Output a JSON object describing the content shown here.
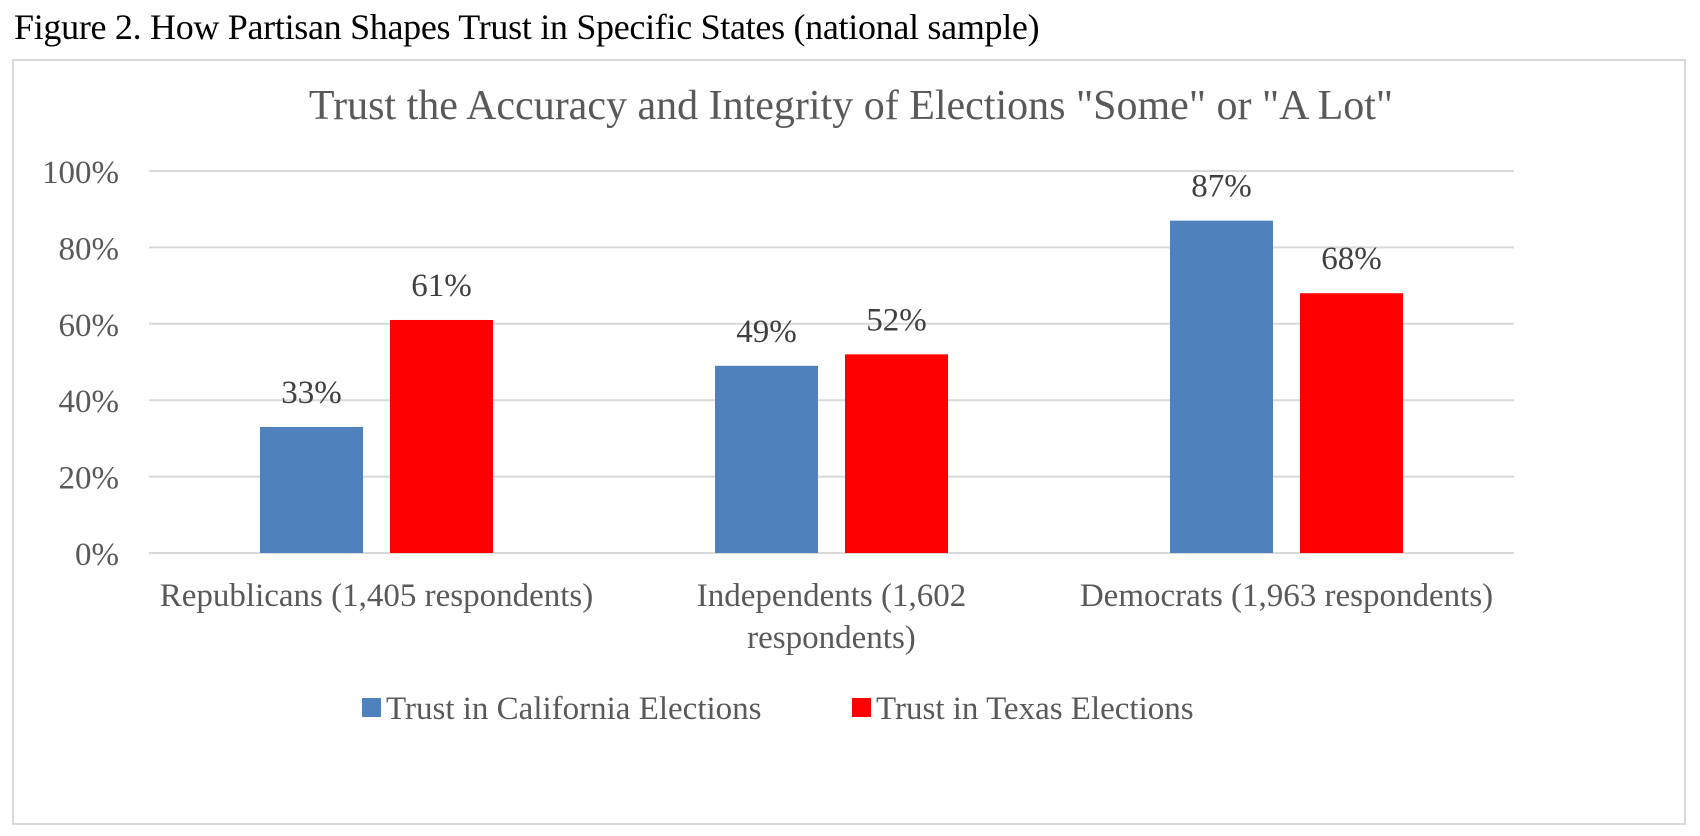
{
  "figure_caption": "Figure 2. How Partisan Shapes Trust in Specific States (national sample)",
  "chart_data": {
    "type": "bar",
    "title": "Trust the Accuracy and Integrity of Elections \"Some\" or \"A Lot\"",
    "xlabel": "",
    "ylabel": "",
    "ylim": [
      0,
      100
    ],
    "yticks": [
      0,
      20,
      40,
      60,
      80,
      100
    ],
    "ytick_labels": [
      "0%",
      "20%",
      "40%",
      "60%",
      "80%",
      "100%"
    ],
    "grid": true,
    "legend_position": "bottom",
    "categories": [
      [
        "Republicans (1,405 respondents)"
      ],
      [
        "Independents (1,602",
        "respondents)"
      ],
      [
        "Democrats (1,963 respondents)"
      ]
    ],
    "series": [
      {
        "name": "Trust in California Elections",
        "color": "#4f81bd",
        "values": [
          33,
          49,
          87
        ],
        "labels": [
          "33%",
          "49%",
          "87%"
        ]
      },
      {
        "name": "Trust in Texas Elections",
        "color": "#ff0000",
        "values": [
          61,
          52,
          68
        ],
        "labels": [
          "61%",
          "52%",
          "68%"
        ]
      }
    ]
  }
}
